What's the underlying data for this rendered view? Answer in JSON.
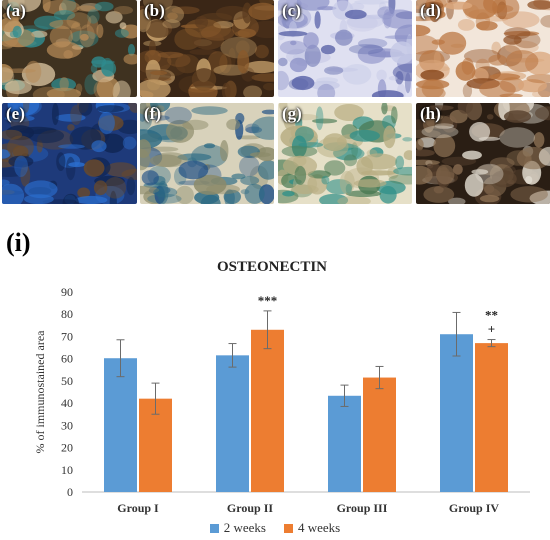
{
  "panels": [
    {
      "label": "(a)",
      "tones": [
        "#3f3220",
        "#2f8c8f",
        "#b78b57",
        "#d8c39f"
      ]
    },
    {
      "label": "(b)",
      "tones": [
        "#3a2616",
        "#8a5a2c",
        "#c9a36d",
        "#5b3b1e"
      ]
    },
    {
      "label": "(c)",
      "tones": [
        "#dfe0f1",
        "#5a63a8",
        "#8a8fc6",
        "#c6c9e6"
      ]
    },
    {
      "label": "(d)",
      "tones": [
        "#f2e6da",
        "#b9743f",
        "#d9a57a",
        "#8a4a1f"
      ]
    },
    {
      "label": "(e)",
      "tones": [
        "#1e3a7a",
        "#2b6fd0",
        "#6a4a2a",
        "#0f2450"
      ]
    },
    {
      "label": "(f)",
      "tones": [
        "#d8d2bb",
        "#1f4f86",
        "#2b6a84",
        "#8c8a6a"
      ]
    },
    {
      "label": "(g)",
      "tones": [
        "#e6e0c8",
        "#2e8f88",
        "#4a7a53",
        "#b8ad82"
      ]
    },
    {
      "label": "(h)",
      "tones": [
        "#2a1e14",
        "#8b6f52",
        "#e3ddd1",
        "#5a4330"
      ]
    }
  ],
  "chart_label": "(i)",
  "chart_data": {
    "type": "bar",
    "title": "OSTEONECTIN",
    "ylabel": "% of immunostained area",
    "xlabel": "",
    "categories": [
      "Group I",
      "Group II",
      "Group III",
      "Group IV"
    ],
    "ylim": [
      0,
      90
    ],
    "yticks": [
      0,
      10,
      20,
      30,
      40,
      50,
      60,
      70,
      80,
      90
    ],
    "grid": false,
    "legend": "bottom",
    "series": [
      {
        "name": "2 weeks",
        "color": "#5b9bd5",
        "values": [
          60.2,
          61.5,
          43.3,
          71.0
        ],
        "errors": [
          8.3,
          5.3,
          4.8,
          9.8
        ]
      },
      {
        "name": "4 weeks",
        "color": "#ed7d31",
        "values": [
          42.0,
          73.0,
          51.5,
          67.0
        ],
        "errors": [
          7.0,
          8.5,
          5.0,
          1.6
        ]
      }
    ],
    "annotations": [
      {
        "category": "Group II",
        "series": "4 weeks",
        "lines": [
          "***"
        ]
      },
      {
        "category": "Group IV",
        "series": "4 weeks",
        "lines": [
          "**",
          "+"
        ]
      }
    ]
  }
}
